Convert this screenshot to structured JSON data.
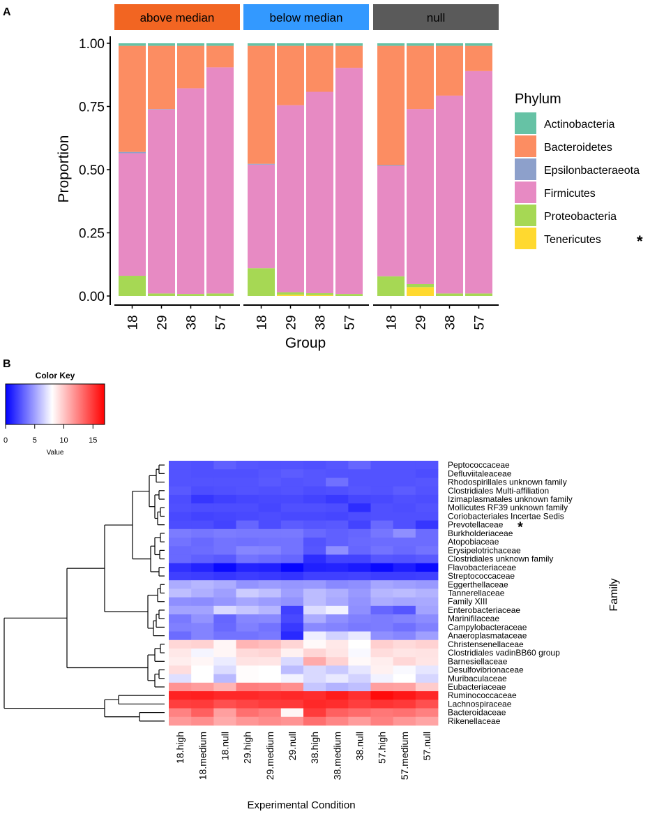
{
  "panels": {
    "a": "A",
    "b": "B"
  },
  "chart_data": [
    {
      "type": "bar",
      "subtype": "stacked-proportion",
      "ylabel": "Proportion",
      "xlabel": "Group",
      "ylim": [
        0,
        1
      ],
      "yticks": [
        "0.00",
        "0.25",
        "0.50",
        "0.75",
        "1.00"
      ],
      "facets": [
        "above median",
        "below median",
        "null"
      ],
      "facet_colors": [
        "#f26522",
        "#3399ff",
        "#5a5a5a"
      ],
      "categories": [
        "18",
        "29",
        "38",
        "57"
      ],
      "legend_title": "Phylum",
      "legend_position": "right",
      "series": [
        {
          "name": "Actinobacteria",
          "color": "#66c2a5"
        },
        {
          "name": "Bacteroidetes",
          "color": "#fc8d62"
        },
        {
          "name": "Epsilonbacteraeota",
          "color": "#8da0cb"
        },
        {
          "name": "Firmicutes",
          "color": "#e78ac3"
        },
        {
          "name": "Proteobacteria",
          "color": "#a6d854"
        },
        {
          "name": "Tenericutes",
          "color": "#ffd92f",
          "marker": "*"
        }
      ],
      "stacks_bottom_up": [
        "Tenericutes",
        "Proteobacteria",
        "Firmicutes",
        "Epsilonbacteraeota",
        "Bacteroidetes",
        "Actinobacteria"
      ],
      "values": [
        [
          {
            "Tenericutes": 0.0,
            "Proteobacteria": 0.08,
            "Firmicutes": 0.485,
            "Epsilonbacteraeota": 0.005,
            "Bacteroidetes": 0.42,
            "Actinobacteria": 0.01
          },
          {
            "Tenericutes": 0.0,
            "Proteobacteria": 0.01,
            "Firmicutes": 0.728,
            "Epsilonbacteraeota": 0.002,
            "Bacteroidetes": 0.25,
            "Actinobacteria": 0.01
          },
          {
            "Tenericutes": 0.0,
            "Proteobacteria": 0.008,
            "Firmicutes": 0.814,
            "Epsilonbacteraeota": 0.0,
            "Bacteroidetes": 0.168,
            "Actinobacteria": 0.01
          },
          {
            "Tenericutes": 0.0,
            "Proteobacteria": 0.01,
            "Firmicutes": 0.895,
            "Epsilonbacteraeota": 0.0,
            "Bacteroidetes": 0.085,
            "Actinobacteria": 0.01
          }
        ],
        [
          {
            "Tenericutes": 0.0,
            "Proteobacteria": 0.11,
            "Firmicutes": 0.41,
            "Epsilonbacteraeota": 0.003,
            "Bacteroidetes": 0.467,
            "Actinobacteria": 0.01
          },
          {
            "Tenericutes": 0.005,
            "Proteobacteria": 0.01,
            "Firmicutes": 0.74,
            "Epsilonbacteraeota": 0.0,
            "Bacteroidetes": 0.235,
            "Actinobacteria": 0.01
          },
          {
            "Tenericutes": 0.003,
            "Proteobacteria": 0.008,
            "Firmicutes": 0.797,
            "Epsilonbacteraeota": 0.0,
            "Bacteroidetes": 0.182,
            "Actinobacteria": 0.01
          },
          {
            "Tenericutes": 0.0,
            "Proteobacteria": 0.008,
            "Firmicutes": 0.895,
            "Epsilonbacteraeota": 0.0,
            "Bacteroidetes": 0.087,
            "Actinobacteria": 0.01
          }
        ],
        [
          {
            "Tenericutes": 0.0,
            "Proteobacteria": 0.078,
            "Firmicutes": 0.437,
            "Epsilonbacteraeota": 0.003,
            "Bacteroidetes": 0.472,
            "Actinobacteria": 0.01
          },
          {
            "Tenericutes": 0.035,
            "Proteobacteria": 0.012,
            "Firmicutes": 0.693,
            "Epsilonbacteraeota": 0.0,
            "Bacteroidetes": 0.25,
            "Actinobacteria": 0.01
          },
          {
            "Tenericutes": 0.0,
            "Proteobacteria": 0.01,
            "Firmicutes": 0.783,
            "Epsilonbacteraeota": 0.0,
            "Bacteroidetes": 0.197,
            "Actinobacteria": 0.01
          },
          {
            "Tenericutes": 0.0,
            "Proteobacteria": 0.01,
            "Firmicutes": 0.88,
            "Epsilonbacteraeota": 0.0,
            "Bacteroidetes": 0.1,
            "Actinobacteria": 0.01
          }
        ]
      ]
    },
    {
      "type": "heatmap",
      "xlabel": "Experimental Condition",
      "ylabel": "Family",
      "color_key": {
        "title": "Color Key",
        "label": "Value",
        "ticks": [
          "0",
          "5",
          "10",
          "15"
        ],
        "range": [
          0,
          17
        ],
        "midpoint": 8
      },
      "columns": [
        "18.high",
        "18.medium",
        "18.null",
        "29.high",
        "29.medium",
        "29.null",
        "38.high",
        "38.medium",
        "38.null",
        "57.high",
        "57.medium",
        "57.null"
      ],
      "rows": [
        "Peptococcaceae",
        "Defluviitaleaceae",
        "Rhodospirillales unknown family",
        "Clostridiales Multi-affiliation",
        "Izimaplasmatales unknown family",
        "Mollicutes RF39 unknown family",
        "Coriobacteriales Incertae Sedis",
        "Prevotellaceae",
        "Burkholderiaceae",
        "Atopobiaceae",
        "Erysipelotrichaceae",
        "Clostridiales unknown family",
        "Flavobacteriaceae",
        "Streptococcaceae",
        "Eggerthellaceae",
        "Tannerellaceae",
        "Family XIII",
        "Enterobacteriaceae",
        "Marinifilaceae",
        "Campylobacteraceae",
        "Anaeroplasmataceae",
        "Christensenellaceae",
        "Clostridiales vadinBB60 group",
        "Barnesiellaceae",
        "Desulfovibrionaceae",
        "Muribaculaceae",
        "Eubacteriaceae",
        "Ruminococcaceae",
        "Lachnospiraceae",
        "Bacteroidaceae",
        "Rikenellaceae"
      ],
      "row_markers": {
        "Prevotellaceae": "*"
      },
      "values": [
        [
          2.6,
          2.5,
          3.0,
          2.7,
          2.6,
          2.6,
          2.5,
          2.7,
          3.2,
          2.6,
          2.6,
          2.6
        ],
        [
          2.6,
          2.5,
          2.5,
          2.5,
          2.7,
          2.9,
          2.7,
          2.6,
          2.6,
          2.6,
          2.6,
          2.4
        ],
        [
          2.6,
          2.6,
          2.6,
          2.6,
          2.8,
          2.6,
          2.7,
          3.5,
          2.6,
          2.6,
          2.6,
          2.7
        ],
        [
          2.8,
          2.4,
          2.5,
          2.6,
          2.5,
          2.6,
          2.4,
          2.5,
          2.7,
          2.6,
          2.9,
          2.6
        ],
        [
          2.4,
          1.7,
          2.0,
          2.2,
          2.3,
          2.3,
          2.1,
          1.8,
          2.2,
          2.3,
          2.5,
          2.4
        ],
        [
          2.5,
          2.4,
          2.4,
          2.4,
          2.2,
          2.5,
          2.5,
          2.4,
          1.4,
          2.5,
          2.4,
          2.6
        ],
        [
          2.3,
          2.1,
          2.2,
          2.3,
          2.4,
          2.3,
          2.3,
          2.2,
          2.4,
          2.5,
          2.5,
          2.5
        ],
        [
          2.4,
          2.4,
          2.1,
          3.2,
          2.4,
          2.9,
          2.7,
          2.8,
          2.1,
          3.3,
          2.5,
          1.7
        ],
        [
          3.9,
          3.7,
          3.9,
          3.8,
          3.8,
          3.8,
          3.3,
          3.0,
          3.2,
          3.7,
          4.5,
          3.4
        ],
        [
          3.6,
          3.3,
          3.6,
          3.5,
          3.6,
          3.6,
          2.6,
          3.0,
          3.3,
          3.4,
          3.4,
          3.4
        ],
        [
          3.3,
          3.4,
          3.6,
          4.2,
          4.1,
          3.6,
          2.7,
          4.5,
          3.2,
          3.6,
          3.3,
          3.6
        ],
        [
          3.3,
          3.0,
          2.8,
          3.6,
          3.4,
          3.2,
          1.4,
          2.1,
          2.1,
          2.7,
          2.6,
          2.8
        ],
        [
          1.5,
          1.1,
          0.3,
          1.1,
          1.0,
          0.2,
          1.0,
          1.1,
          0.8,
          0.3,
          0.9,
          0.3
        ],
        [
          2.0,
          1.9,
          1.7,
          1.9,
          1.8,
          1.6,
          2.0,
          2.0,
          2.1,
          1.9,
          1.9,
          2.0
        ],
        [
          5.4,
          5.7,
          5.4,
          4.6,
          4.9,
          4.7,
          4.8,
          4.3,
          4.5,
          5.2,
          5.0,
          4.8
        ],
        [
          6.0,
          5.5,
          5.0,
          6.4,
          6.0,
          5.0,
          5.9,
          5.5,
          4.8,
          5.7,
          5.9,
          5.6
        ],
        [
          4.5,
          4.4,
          4.7,
          5.2,
          4.9,
          4.6,
          5.9,
          5.3,
          4.6,
          5.4,
          5.2,
          5.3
        ],
        [
          5.1,
          5.1,
          6.8,
          6.2,
          5.7,
          2.0,
          6.9,
          7.6,
          4.5,
          3.2,
          2.7,
          5.1
        ],
        [
          3.8,
          4.6,
          3.2,
          4.2,
          4.3,
          2.3,
          5.4,
          4.5,
          4.0,
          3.9,
          4.1,
          4.4
        ],
        [
          4.0,
          4.1,
          3.3,
          4.0,
          3.6,
          1.8,
          4.3,
          4.1,
          3.8,
          3.9,
          3.5,
          4.0
        ],
        [
          3.4,
          4.1,
          3.6,
          3.6,
          3.8,
          1.3,
          7.5,
          6.6,
          7.3,
          4.5,
          4.2,
          5.0
        ],
        [
          9.4,
          9.6,
          8.3,
          10.6,
          10.3,
          9.5,
          8.2,
          8.8,
          8.0,
          9.7,
          9.3,
          9.6
        ],
        [
          8.8,
          7.7,
          8.3,
          9.3,
          9.5,
          8.5,
          9.5,
          8.9,
          7.8,
          9.2,
          8.9,
          9.0
        ],
        [
          8.6,
          8.3,
          7.4,
          9.0,
          8.9,
          6.8,
          11.0,
          9.6,
          8.2,
          8.6,
          9.4,
          8.9
        ],
        [
          9.2,
          8.0,
          6.9,
          8.1,
          8.0,
          5.9,
          6.8,
          6.3,
          7.2,
          8.5,
          7.8,
          7.2
        ],
        [
          7.0,
          8.0,
          5.8,
          8.1,
          8.0,
          7.6,
          6.8,
          7.3,
          6.6,
          7.6,
          8.0,
          6.7
        ],
        [
          11.8,
          11.5,
          10.6,
          12.6,
          12.4,
          12.0,
          6.2,
          5.6,
          6.0,
          11.4,
          11.3,
          9.8
        ],
        [
          15.8,
          15.9,
          15.6,
          15.6,
          15.4,
          15.6,
          15.4,
          16.0,
          15.3,
          16.6,
          16.2,
          15.6
        ],
        [
          14.8,
          14.9,
          14.2,
          14.6,
          14.9,
          15.0,
          15.6,
          15.4,
          14.8,
          15.2,
          15.0,
          14.2
        ],
        [
          12.4,
          13.6,
          11.4,
          13.1,
          12.6,
          8.3,
          14.9,
          13.6,
          13.2,
          12.8,
          13.0,
          12.5
        ],
        [
          11.6,
          12.0,
          11.0,
          11.7,
          12.1,
          11.8,
          13.1,
          12.3,
          11.5,
          12.5,
          11.7,
          11.2
        ]
      ]
    }
  ]
}
